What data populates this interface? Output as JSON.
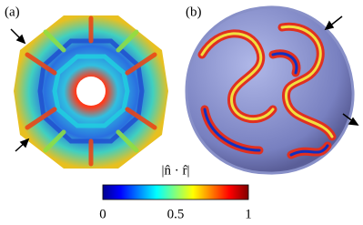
{
  "panels": [
    {
      "label": "(a)"
    },
    {
      "label": "(b)"
    }
  ],
  "colorbar": {
    "label": "|n̂ · r̂|",
    "ticks": [
      "0",
      "0.5",
      "1"
    ]
  }
}
